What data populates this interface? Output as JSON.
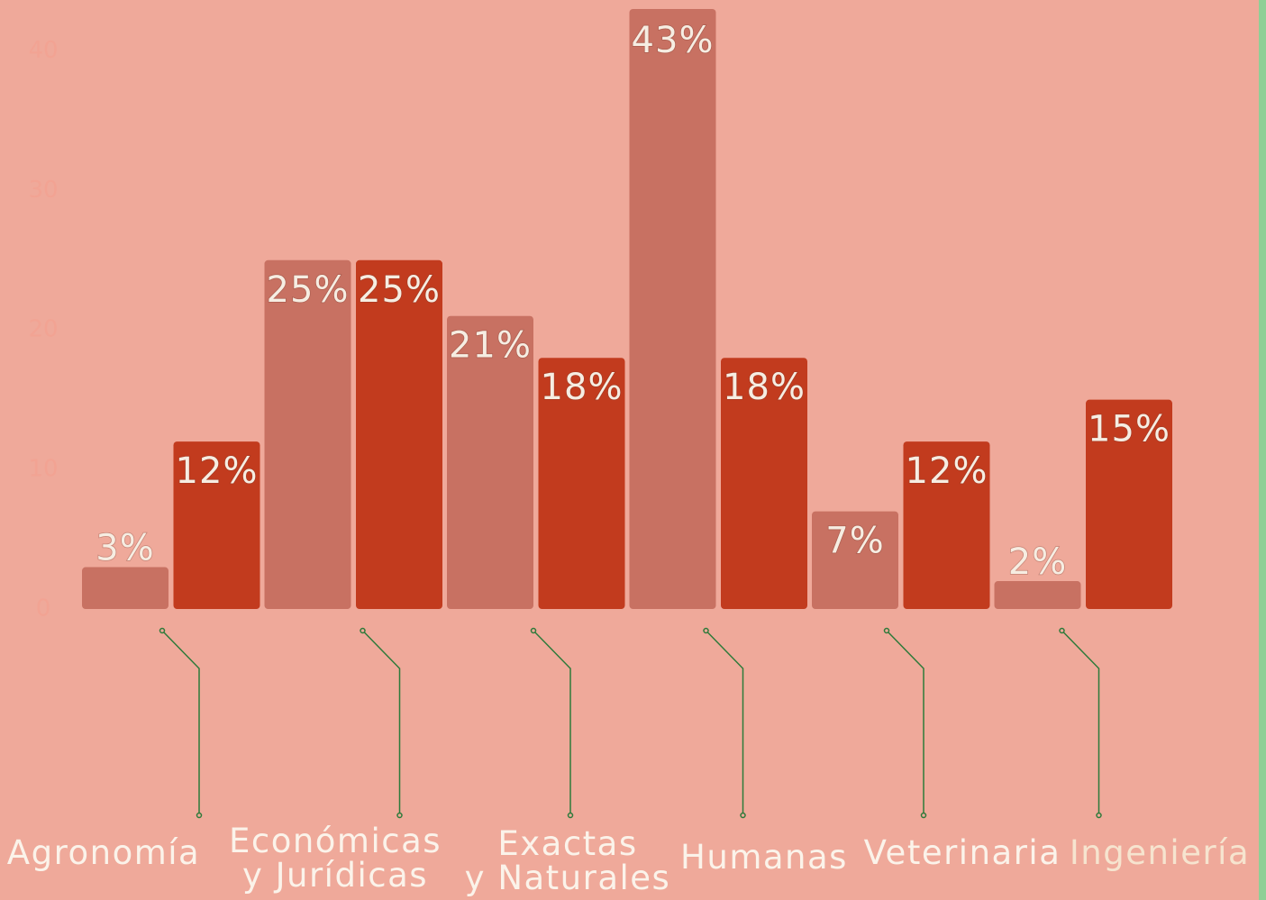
{
  "chart_data": {
    "type": "bar",
    "categories": [
      "Agronomía",
      "Económicas\ny Jurídicas",
      "Exactas\ny Naturales",
      "Humanas",
      "Veterinaria",
      "Ingeniería"
    ],
    "series": [
      {
        "color": "#c87162",
        "values": [
          3,
          25,
          21,
          43,
          7,
          2
        ],
        "value_labels": [
          "3%",
          "25%",
          "21%",
          "43%",
          "7%",
          "2%"
        ]
      },
      {
        "color": "#c23b1e",
        "values": [
          12,
          25,
          18,
          18,
          12,
          15
        ],
        "value_labels": [
          "12%",
          "25%",
          "18%",
          "18%",
          "12%",
          "15%"
        ]
      }
    ],
    "ylim": [
      0,
      43
    ],
    "yticks": [
      0,
      10,
      20,
      30,
      40
    ],
    "grid": false
  }
}
